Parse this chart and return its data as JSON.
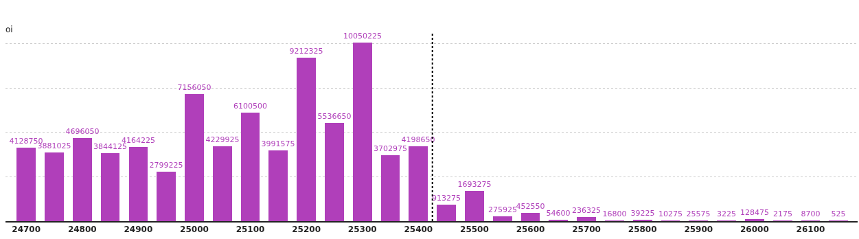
{
  "chart_data": {
    "type": "bar",
    "ylabel": "oi",
    "x": [
      24700,
      24750,
      24800,
      24850,
      24900,
      24950,
      25000,
      25050,
      25100,
      25150,
      25200,
      25250,
      25300,
      25350,
      25400,
      25450,
      25500,
      25550,
      25600,
      25650,
      25700,
      25750,
      25800,
      25850,
      25900,
      25950,
      26000,
      26050,
      26100,
      26150
    ],
    "values": [
      4128750,
      3881025,
      4696050,
      3844125,
      4164225,
      2799225,
      7156050,
      4229925,
      6100500,
      3991575,
      9212325,
      5536650,
      10050225,
      3702975,
      4198650,
      913275,
      1693275,
      275925,
      452550,
      54600,
      236325,
      16800,
      39225,
      10275,
      25575,
      3225,
      128475,
      2175,
      8700,
      525
    ],
    "color": "#b03fba",
    "xlim": [
      24663,
      26184
    ],
    "xticks": [
      24700,
      24800,
      24900,
      25000,
      25100,
      25200,
      25300,
      25400,
      25500,
      25600,
      25700,
      25800,
      25900,
      26000,
      26100
    ],
    "ylim": [
      0,
      10600000
    ],
    "yticks": [
      {
        "value": 0,
        "label": null
      },
      {
        "value": 2500000,
        "label": null
      },
      {
        "value": 5000000,
        "label": null
      },
      {
        "value": 7500000,
        "label": null
      },
      {
        "value": 10000000,
        "label": null
      }
    ],
    "tick_labels": "x",
    "grid": "y",
    "data_labels": true,
    "ref_lines": [
      {
        "axis": "x",
        "value": 25425,
        "color": "#000000",
        "line_style": "dotted"
      }
    ]
  }
}
